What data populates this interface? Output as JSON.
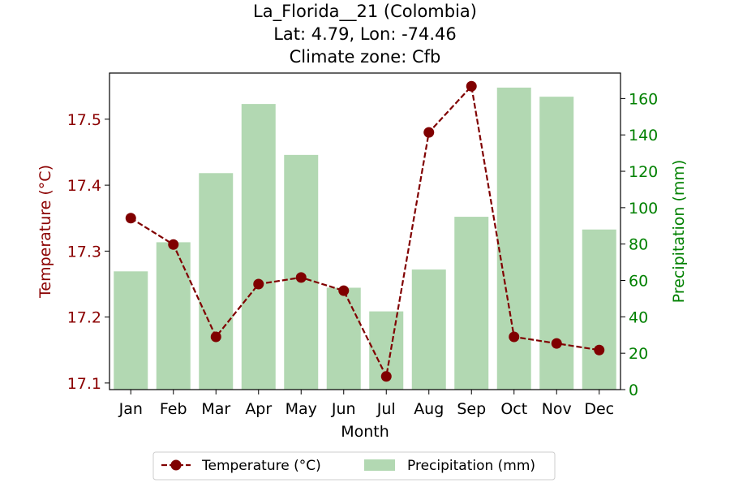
{
  "chart_data": {
    "type": "bar+line",
    "title_lines": [
      "La_Florida__21 (Colombia)",
      "Lat: 4.79, Lon: -74.46",
      "Climate zone: Cfb"
    ],
    "xlabel": "Month",
    "categories": [
      "Jan",
      "Feb",
      "Mar",
      "Apr",
      "May",
      "Jun",
      "Jul",
      "Aug",
      "Sep",
      "Oct",
      "Nov",
      "Dec"
    ],
    "y_left": {
      "label": "Temperature (°C)",
      "ylim": [
        17.09,
        17.57
      ],
      "ticks": [
        17.1,
        17.2,
        17.3,
        17.4,
        17.5
      ],
      "tick_labels": [
        "17.1",
        "17.2",
        "17.3",
        "17.4",
        "17.5"
      ],
      "color": "#8b0000"
    },
    "y_right": {
      "label": "Precipitation (mm)",
      "ylim": [
        0,
        174
      ],
      "ticks": [
        0,
        20,
        40,
        60,
        80,
        100,
        120,
        140,
        160
      ],
      "tick_labels": [
        "0",
        "20",
        "40",
        "60",
        "80",
        "100",
        "120",
        "140",
        "160"
      ],
      "color": "#008000"
    },
    "series": [
      {
        "name": "Temperature (°C)",
        "kind": "line",
        "axis": "left",
        "style": "dashed with circle markers",
        "color": "#800000",
        "values": [
          17.35,
          17.31,
          17.17,
          17.25,
          17.26,
          17.24,
          17.11,
          17.48,
          17.55,
          17.17,
          17.16,
          17.15
        ]
      },
      {
        "name": "Precipitation (mm)",
        "kind": "bar",
        "axis": "right",
        "color": "#b2d8b2",
        "values": [
          65,
          81,
          119,
          157,
          129,
          56,
          43,
          66,
          95,
          166,
          161,
          88
        ]
      }
    ],
    "legend": {
      "placement": "bottom-center",
      "entries": [
        "Temperature (°C)",
        "Precipitation (mm)"
      ]
    },
    "grid": false
  }
}
